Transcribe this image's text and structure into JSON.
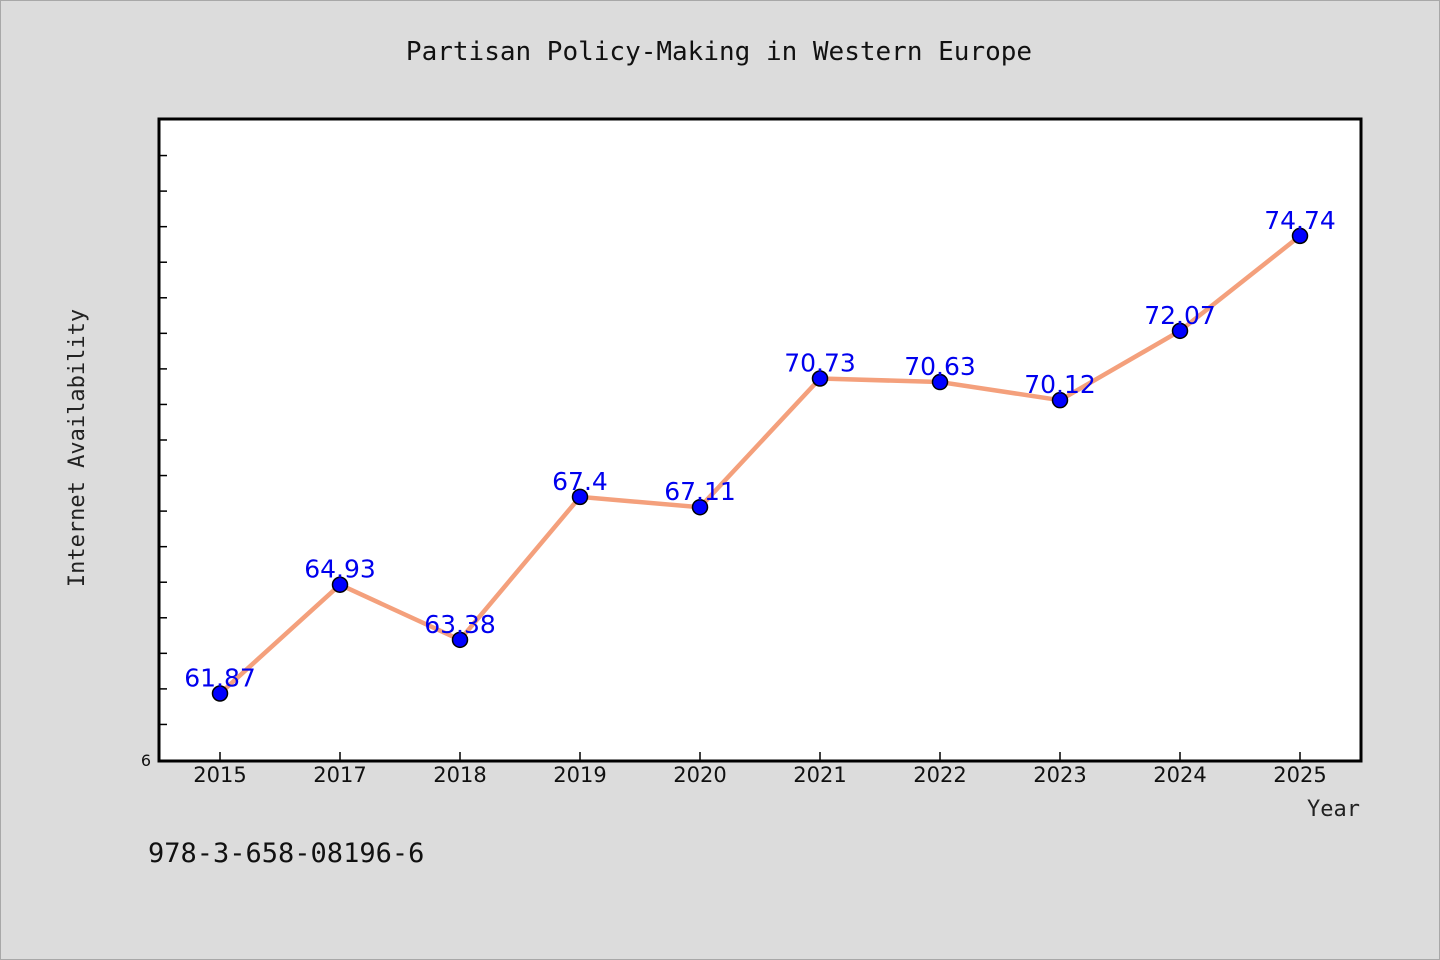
{
  "chart_data": {
    "type": "line",
    "title": "Partisan Policy-Making in Western Europe",
    "xlabel": "Year",
    "ylabel": "Internet Availability",
    "categories": [
      "2015",
      "2017",
      "2018",
      "2019",
      "2020",
      "2021",
      "2022",
      "2023",
      "2024",
      "2025"
    ],
    "series": [
      {
        "values": [
          61.87,
          64.93,
          63.38,
          67.4,
          67.11,
          70.73,
          70.63,
          70.12,
          72.07,
          74.74
        ]
      }
    ],
    "data_labels": [
      "61.87",
      "64.93",
      "63.38",
      "67.4",
      "67.11",
      "70.73",
      "70.63",
      "70.12",
      "72.07",
      "74.74"
    ],
    "ylim": [
      60,
      78
    ],
    "y_tick_label_shown": "6",
    "grid": false,
    "legend": "none"
  },
  "footer": {
    "isbn": "978-3-658-08196-6"
  },
  "colors": {
    "background": "#dcdcdc",
    "plot_background": "#ffffff",
    "line": "#f4a07c",
    "marker": "#0000ff",
    "data_label": "#0000ee"
  }
}
